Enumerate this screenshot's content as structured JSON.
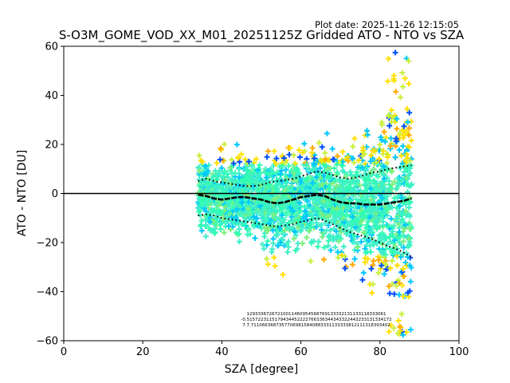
{
  "chart_data": {
    "type": "scatter",
    "title": "S-O3M_GOME_VOD_XX_M01_20251125Z Gridded ATO - NTO vs SZA",
    "plot_date": "Plot date: 2025-11-26 12:15:05",
    "xlabel": "SZA [degree]",
    "ylabel": "ATO - NTO [DU]",
    "xlim": [
      0,
      100
    ],
    "ylim": [
      -60,
      60
    ],
    "xticks": [
      0,
      20,
      40,
      60,
      80,
      100
    ],
    "yticks": [
      -60,
      -40,
      -20,
      0,
      20,
      40,
      60
    ],
    "xtick_labels": [
      "0",
      "20",
      "40",
      "60",
      "80",
      "100"
    ],
    "ytick_labels": [
      "−60",
      "−40",
      "−20",
      "0",
      "20",
      "40",
      "60"
    ],
    "zero_line": 0,
    "scatter_colors": [
      "#00c8ff",
      "#3ef0c8",
      "#7cf07c",
      "#c8f03c",
      "#ffe000",
      "#ffa800",
      "#0050ff",
      "#30ffb0"
    ],
    "scatter_x_range": [
      34,
      88
    ],
    "mean": {
      "x": [
        34,
        36,
        38,
        40,
        42,
        44,
        46,
        48,
        50,
        52,
        54,
        56,
        58,
        60,
        62,
        64,
        66,
        68,
        70,
        72,
        74,
        76,
        78,
        80,
        82,
        84,
        86,
        88
      ],
      "y": [
        -0.5,
        -1,
        -2,
        -2.5,
        -2,
        -1.5,
        -1.5,
        -2,
        -2.5,
        -3.5,
        -4,
        -3.5,
        -2.5,
        -1.5,
        -1,
        -0.5,
        -1,
        -2.5,
        -3.5,
        -4,
        -4,
        -4.5,
        -4.5,
        -4.5,
        -4,
        -3.5,
        -3,
        -2
      ]
    },
    "upper": {
      "x": [
        34,
        36,
        38,
        40,
        42,
        44,
        46,
        48,
        50,
        52,
        54,
        56,
        58,
        60,
        62,
        64,
        66,
        68,
        70,
        72,
        74,
        76,
        78,
        80,
        82,
        84,
        86,
        88
      ],
      "y": [
        5,
        6,
        5,
        4.5,
        4,
        3.5,
        3,
        3,
        3.5,
        4.5,
        5,
        5.5,
        6,
        7,
        8,
        9,
        8.5,
        7.5,
        6.5,
        6,
        6.5,
        7.5,
        8.5,
        9,
        10,
        10.5,
        11,
        11.5
      ]
    },
    "lower": {
      "x": [
        34,
        36,
        38,
        40,
        42,
        44,
        46,
        48,
        50,
        52,
        54,
        56,
        58,
        60,
        62,
        64,
        66,
        68,
        70,
        72,
        74,
        76,
        78,
        80,
        82,
        84,
        86,
        88
      ],
      "y": [
        -9,
        -8.5,
        -9,
        -10,
        -10.5,
        -11,
        -11.5,
        -12,
        -12.5,
        -13,
        -13.5,
        -13,
        -12.5,
        -11.5,
        -11,
        -10,
        -11,
        -12.5,
        -14,
        -15.5,
        -16.5,
        -17.5,
        -18.5,
        -20,
        -21.5,
        -22.5,
        -24,
        -26
      ]
    },
    "count_labels": {
      "row1": "12933367267210011460954568769133332131133118333061",
      "row2": "-0.5157223115179434452222766336344343322443233131334172",
      "row3": "7.7.71106636873577069815840883331133333812111318393402"
    }
  }
}
